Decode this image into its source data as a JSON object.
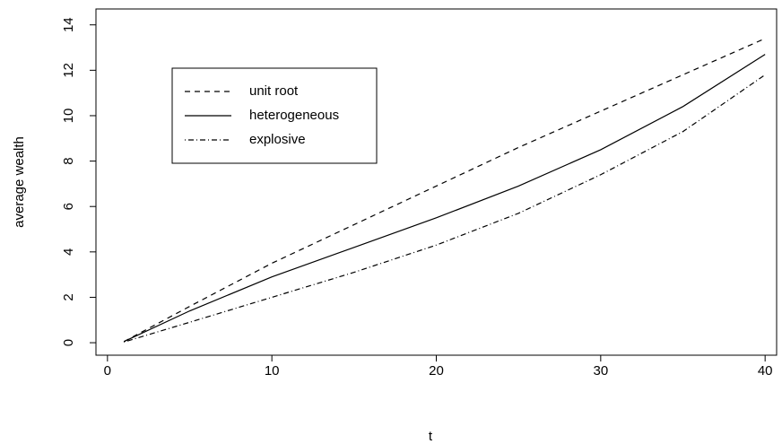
{
  "chart_data": {
    "type": "line",
    "x_label": "t",
    "y_label": "average wealth",
    "x": [
      1,
      5,
      10,
      15,
      20,
      25,
      30,
      35,
      40
    ],
    "series": [
      {
        "name": "unit root",
        "color": "#000000",
        "linestyle": "dashed",
        "values": [
          0.05,
          1.6,
          3.5,
          5.2,
          6.9,
          8.6,
          10.2,
          11.8,
          13.4
        ]
      },
      {
        "name": "heterogeneous",
        "color": "#000000",
        "linestyle": "solid",
        "values": [
          0.05,
          1.4,
          2.9,
          4.2,
          5.5,
          6.9,
          8.5,
          10.4,
          12.7
        ]
      },
      {
        "name": "explosive",
        "color": "#000000",
        "linestyle": "dotdash",
        "values": [
          0.03,
          0.9,
          2.0,
          3.1,
          4.3,
          5.7,
          7.4,
          9.3,
          11.8
        ]
      }
    ],
    "xlim": [
      -0.7,
      40.7
    ],
    "ylim": [
      -0.55,
      14.7
    ],
    "xticks": [
      0,
      10,
      20,
      30,
      40
    ],
    "yticks": [
      0,
      2,
      4,
      6,
      8,
      10,
      12,
      14
    ],
    "legend": "top-left"
  }
}
